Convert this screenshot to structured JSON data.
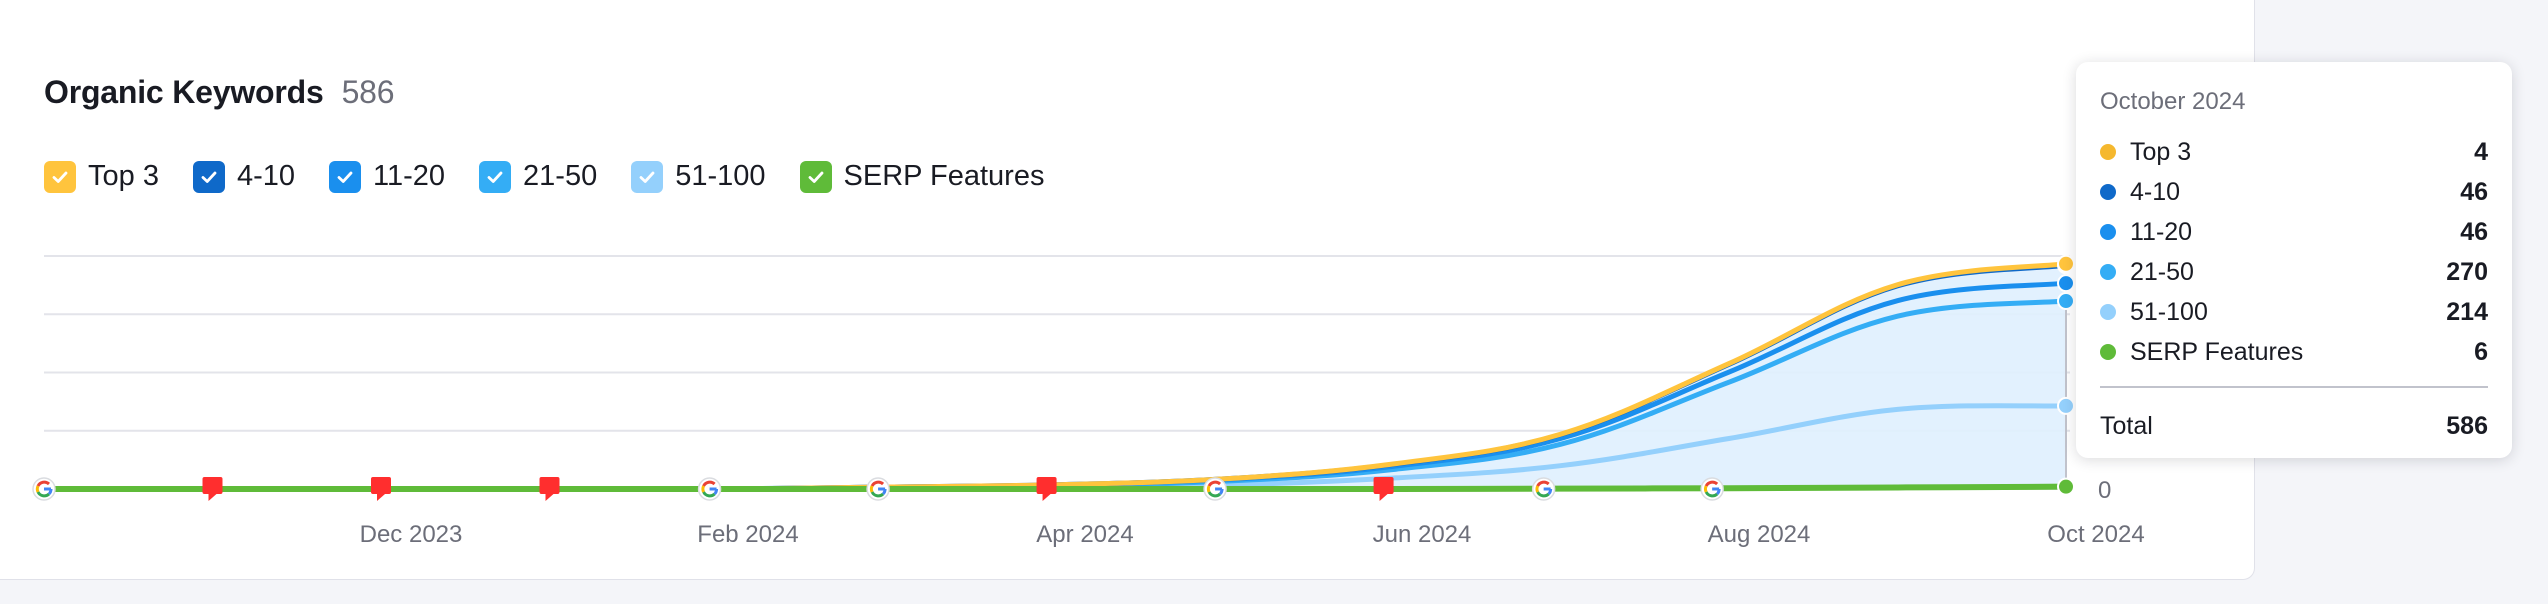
{
  "header": {
    "title": "Organic Keywords",
    "count": "586"
  },
  "legend": [
    {
      "label": "Top 3",
      "color": "#ffc43d",
      "checked": true
    },
    {
      "label": "4-10",
      "color": "#0f69c9",
      "checked": true
    },
    {
      "label": "11-20",
      "color": "#1a8fee",
      "checked": true
    },
    {
      "label": "21-50",
      "color": "#34adf5",
      "checked": true
    },
    {
      "label": "51-100",
      "color": "#94d0fc",
      "checked": true
    },
    {
      "label": "SERP Features",
      "color": "#5fbb39",
      "checked": true
    }
  ],
  "tooltip": {
    "date": "October 2024",
    "rows": [
      {
        "label": "Top 3",
        "value": "4",
        "color": "#f5b82e"
      },
      {
        "label": "4-10",
        "value": "46",
        "color": "#0f69c9"
      },
      {
        "label": "11-20",
        "value": "46",
        "color": "#1a8fee"
      },
      {
        "label": "21-50",
        "value": "270",
        "color": "#34adf5"
      },
      {
        "label": "51-100",
        "value": "214",
        "color": "#94d0fc"
      },
      {
        "label": "SERP Features",
        "value": "6",
        "color": "#5fbb39"
      }
    ],
    "total_label": "Total",
    "total_value": "586"
  },
  "chart_data": {
    "type": "area",
    "stacked": true,
    "x_tick_labels": [
      "Dec 2023",
      "Feb 2024",
      "Apr 2024",
      "Jun 2024",
      "Aug 2024",
      "Oct 2024"
    ],
    "y_tick_labels": [
      "0"
    ],
    "ylim": [
      0,
      600
    ],
    "grid": true,
    "x": [
      "Oct 2023",
      "Nov 2023",
      "Dec 2023",
      "Jan 2024",
      "Feb 2024",
      "Mar 2024",
      "Apr 2024",
      "May 2024",
      "Jun 2024",
      "Jul 2024",
      "Aug 2024",
      "Sep 2024",
      "Oct 2024"
    ],
    "series": [
      {
        "name": "51-100",
        "color": "#94d0fc",
        "values": [
          0,
          0,
          0,
          0,
          0,
          2,
          4,
          10,
          28,
          60,
          130,
          205,
          214
        ]
      },
      {
        "name": "21-50",
        "color": "#34adf5",
        "values": [
          0,
          0,
          0,
          0,
          0,
          2,
          4,
          10,
          22,
          55,
          145,
          240,
          270
        ]
      },
      {
        "name": "11-20",
        "color": "#1a8fee",
        "values": [
          0,
          0,
          0,
          0,
          0,
          1,
          2,
          4,
          8,
          15,
          26,
          40,
          46
        ]
      },
      {
        "name": "4-10",
        "color": "#0f69c9",
        "values": [
          0,
          0,
          0,
          0,
          0,
          0,
          1,
          2,
          5,
          10,
          20,
          38,
          46
        ]
      },
      {
        "name": "Top 3",
        "color": "#ffc43d",
        "values": [
          0,
          0,
          0,
          0,
          0,
          0,
          0,
          0,
          1,
          1,
          2,
          3,
          4
        ]
      },
      {
        "name": "SERP Features",
        "color": "#5fbb39",
        "values": [
          0,
          0,
          0,
          0,
          0,
          0,
          0,
          0,
          0,
          1,
          2,
          4,
          6
        ]
      }
    ],
    "markers": [
      {
        "type": "google",
        "x": 0.0
      },
      {
        "type": "flag",
        "x": 1.0
      },
      {
        "type": "flag",
        "x": 2.0
      },
      {
        "type": "flag",
        "x": 3.0
      },
      {
        "type": "google",
        "x": 3.95
      },
      {
        "type": "google",
        "x": 4.95
      },
      {
        "type": "flag",
        "x": 5.95
      },
      {
        "type": "google",
        "x": 6.95
      },
      {
        "type": "flag",
        "x": 7.95
      },
      {
        "type": "google",
        "x": 8.9
      },
      {
        "type": "google",
        "x": 9.9
      }
    ]
  }
}
